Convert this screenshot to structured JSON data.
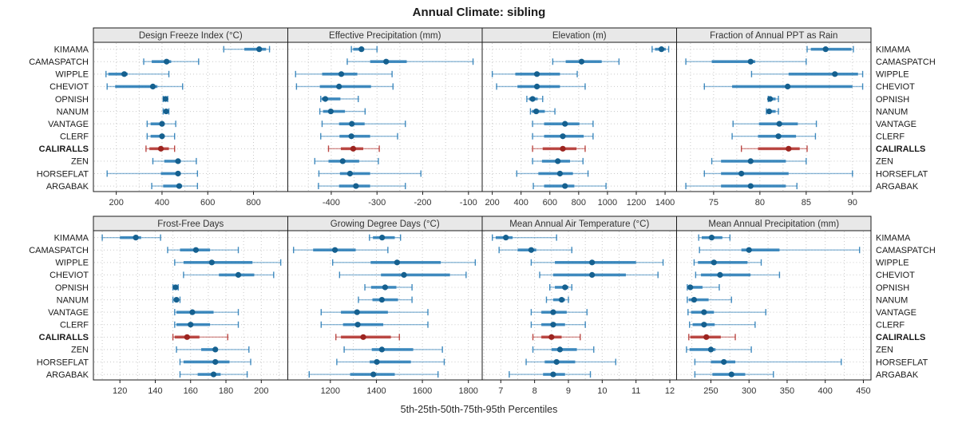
{
  "title": "Annual Climate: sibling",
  "caption": "5th-25th-50th-75th-95th Percentiles",
  "colors": {
    "series_blue": "#2077b4",
    "series_blue_dot": "#15608f",
    "highlight_red": "#b02a25",
    "highlight_red_dot": "#9c241f",
    "panel_header_bg": "#e8e8e8",
    "panel_border": "#1a1a1a",
    "grid": "#c9c9c9",
    "tick": "#1a1a1a"
  },
  "chart_data": {
    "type": "dotplot",
    "subtype": "percentile-error-bars",
    "percentiles": [
      5,
      25,
      50,
      75,
      95
    ],
    "legend_note": "thin line = 5th-95th, thick bar = 25th-75th, dot = 50th percentile",
    "grid": "dotted",
    "sites": [
      "KIMAMA",
      "CAMASPATCH",
      "WIPPLE",
      "CHEVIOT",
      "OPNISH",
      "NANUM",
      "VANTAGE",
      "CLERF",
      "CALIRALLS",
      "ZEN",
      "HORSEFLAT",
      "ARGABAK"
    ],
    "highlight_site": "CALIRALLS",
    "panels": [
      {
        "title": "Design Freeze Index (°C)",
        "xlim": [
          100,
          950
        ],
        "ticks": [
          200,
          400,
          600,
          800
        ],
        "minor": true,
        "data": [
          [
            670,
            760,
            825,
            855,
            870
          ],
          [
            320,
            355,
            420,
            440,
            560
          ],
          [
            155,
            165,
            235,
            250,
            430
          ],
          [
            160,
            195,
            360,
            380,
            490
          ],
          [
            405,
            410,
            415,
            420,
            425
          ],
          [
            405,
            412,
            418,
            424,
            430
          ],
          [
            335,
            350,
            400,
            410,
            460
          ],
          [
            335,
            350,
            400,
            410,
            455
          ],
          [
            330,
            345,
            395,
            430,
            455
          ],
          [
            360,
            410,
            470,
            482,
            550
          ],
          [
            160,
            395,
            470,
            482,
            555
          ],
          [
            355,
            405,
            475,
            488,
            555
          ]
        ]
      },
      {
        "title": "Effective Precipitation (mm)",
        "xlim": [
          -495,
          -70
        ],
        "ticks": [
          -400,
          -300,
          -200,
          -100
        ],
        "minor": true,
        "data": [
          [
            -356,
            -352,
            -334,
            -328,
            -300
          ],
          [
            -365,
            -315,
            -280,
            -235,
            -90
          ],
          [
            -478,
            -420,
            -378,
            -343,
            -267
          ],
          [
            -476,
            -425,
            -383,
            -313,
            -265
          ],
          [
            -423,
            -421,
            -413,
            -380,
            -341
          ],
          [
            -425,
            -418,
            -401,
            -370,
            -326
          ],
          [
            -420,
            -383,
            -355,
            -327,
            -238
          ],
          [
            -423,
            -382,
            -356,
            -315,
            -255
          ],
          [
            -406,
            -379,
            -352,
            -330,
            -295
          ],
          [
            -436,
            -406,
            -375,
            -339,
            -297
          ],
          [
            -427,
            -381,
            -359,
            -315,
            -204
          ],
          [
            -428,
            -383,
            -346,
            -315,
            -238
          ]
        ]
      },
      {
        "title": "Elevation (m)",
        "xlim": [
          130,
          1480
        ],
        "ticks": [
          200,
          400,
          600,
          800,
          1000,
          1200,
          1400
        ],
        "minor": false,
        "data": [
          [
            1310,
            1330,
            1375,
            1405,
            1425
          ],
          [
            620,
            710,
            820,
            960,
            1080
          ],
          [
            200,
            360,
            510,
            670,
            790
          ],
          [
            230,
            375,
            510,
            670,
            845
          ],
          [
            440,
            455,
            480,
            515,
            550
          ],
          [
            465,
            475,
            505,
            565,
            635
          ],
          [
            480,
            560,
            705,
            805,
            900
          ],
          [
            480,
            560,
            690,
            835,
            900
          ],
          [
            480,
            550,
            690,
            785,
            845
          ],
          [
            480,
            545,
            655,
            740,
            830
          ],
          [
            370,
            520,
            670,
            760,
            865
          ],
          [
            485,
            560,
            705,
            770,
            990
          ]
        ]
      },
      {
        "title": "Fraction of Annual PPT as Rain",
        "xlim": [
          71,
          92
        ],
        "ticks": [
          75,
          80,
          85,
          90
        ],
        "minor": true,
        "data": [
          [
            85.1,
            85.5,
            87.1,
            89.9,
            90.1
          ],
          [
            72,
            74.8,
            79,
            79.5,
            85
          ],
          [
            79.1,
            83.1,
            88.1,
            90.6,
            91.1
          ],
          [
            74,
            77,
            83,
            90,
            91.1
          ],
          [
            80.9,
            81,
            81.1,
            81.7,
            82
          ],
          [
            80.7,
            80.9,
            81,
            81.7,
            82
          ],
          [
            77.1,
            79.9,
            82.1,
            84.1,
            86.1
          ],
          [
            77,
            79.8,
            82,
            83.9,
            86
          ],
          [
            78,
            79.8,
            83.1,
            84.3,
            85.1
          ],
          [
            74.8,
            75.8,
            79,
            82.8,
            85
          ],
          [
            74,
            75.8,
            78,
            83.1,
            90
          ],
          [
            72,
            75.8,
            79,
            82.8,
            84
          ]
        ]
      },
      {
        "title": "Frost-Free Days",
        "xlim": [
          105,
          215
        ],
        "ticks": [
          120,
          140,
          160,
          180,
          200
        ],
        "minor": true,
        "data": [
          [
            110,
            120,
            129,
            132,
            143
          ],
          [
            147,
            154,
            163,
            171,
            187
          ],
          [
            151,
            156,
            172,
            195,
            211
          ],
          [
            156,
            176,
            187,
            196,
            207
          ],
          [
            150,
            151,
            151.5,
            152,
            153
          ],
          [
            150,
            151,
            152,
            152.5,
            154
          ],
          [
            151,
            152,
            161,
            173,
            187
          ],
          [
            151,
            152,
            160,
            171,
            187
          ],
          [
            150,
            151,
            158,
            165,
            181
          ],
          [
            152,
            166,
            174,
            175,
            193
          ],
          [
            154,
            156,
            174,
            182,
            194
          ],
          [
            154,
            164,
            173,
            177,
            192
          ]
        ]
      },
      {
        "title": "Growing Degree Days (°C)",
        "xlim": [
          1015,
          1860
        ],
        "ticks": [
          1200,
          1400,
          1600,
          1800
        ],
        "minor": true,
        "data": [
          [
            1370,
            1385,
            1425,
            1480,
            1505
          ],
          [
            1040,
            1125,
            1220,
            1310,
            1450
          ],
          [
            1210,
            1375,
            1490,
            1680,
            1830
          ],
          [
            1240,
            1420,
            1520,
            1720,
            1790
          ],
          [
            1350,
            1377,
            1438,
            1487,
            1555
          ],
          [
            1322,
            1383,
            1424,
            1494,
            1555
          ],
          [
            1160,
            1246,
            1316,
            1450,
            1624
          ],
          [
            1160,
            1255,
            1319,
            1430,
            1624
          ],
          [
            1224,
            1246,
            1343,
            1463,
            1500
          ],
          [
            1260,
            1380,
            1424,
            1560,
            1687
          ],
          [
            1228,
            1371,
            1402,
            1550,
            1695
          ],
          [
            1108,
            1286,
            1387,
            1480,
            1668
          ]
        ]
      },
      {
        "title": "Mean Annual Air Temperature (°C)",
        "xlim": [
          6.45,
          12.2
        ],
        "ticks": [
          7,
          8,
          9,
          10,
          11,
          12
        ],
        "minor": true,
        "data": [
          [
            6.75,
            6.85,
            7.15,
            7.35,
            8.65
          ],
          [
            6.95,
            7.5,
            7.9,
            8.05,
            9.1
          ],
          [
            7.9,
            8.6,
            9.7,
            11.0,
            11.8
          ],
          [
            8.15,
            8.55,
            9.7,
            10.7,
            11.65
          ],
          [
            8.45,
            8.6,
            8.9,
            9.0,
            9.1
          ],
          [
            8.35,
            8.55,
            8.8,
            8.9,
            9.0
          ],
          [
            7.9,
            8.2,
            8.55,
            8.95,
            9.55
          ],
          [
            7.9,
            8.2,
            8.55,
            8.9,
            9.5
          ],
          [
            7.95,
            8.2,
            8.5,
            8.8,
            9.35
          ],
          [
            7.95,
            8.5,
            8.75,
            9.25,
            9.75
          ],
          [
            7.75,
            8.3,
            8.65,
            9.2,
            10.4
          ],
          [
            7.25,
            8.25,
            8.55,
            8.9,
            9.65
          ]
        ]
      },
      {
        "title": "Mean Annual Precipitation (mm)",
        "xlim": [
          205,
          460
        ],
        "ticks": [
          250,
          300,
          350,
          400,
          450
        ],
        "minor": true,
        "data": [
          [
            234,
            238,
            251,
            265,
            275
          ],
          [
            235,
            290,
            300,
            340,
            445
          ],
          [
            228,
            233,
            254,
            298,
            316
          ],
          [
            230,
            237,
            262,
            302,
            340
          ],
          [
            219,
            220,
            223,
            239,
            261
          ],
          [
            219,
            221,
            228,
            247,
            277
          ],
          [
            220,
            224,
            241,
            254,
            322
          ],
          [
            222,
            226,
            241,
            255,
            308
          ],
          [
            221,
            223,
            244,
            263,
            282
          ],
          [
            218,
            222,
            250,
            256,
            303
          ],
          [
            229,
            250,
            267,
            282,
            421
          ],
          [
            229,
            252,
            277,
            295,
            332
          ]
        ]
      }
    ]
  }
}
